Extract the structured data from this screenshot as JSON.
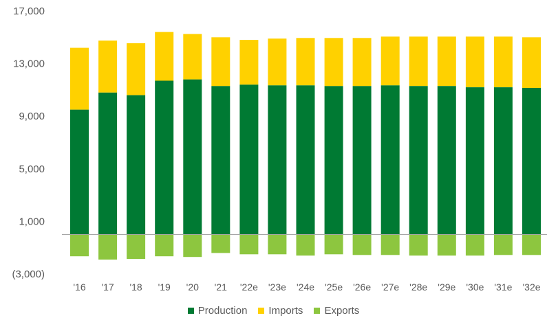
{
  "chart_data": {
    "type": "bar",
    "stacked": true,
    "categories": [
      "'16",
      "'17",
      "'18",
      "'19",
      "'20",
      "'21",
      "'22e",
      "'23e",
      "'24e",
      "'25e",
      "'26e",
      "'27e",
      "'28e",
      "'29e",
      "'30e",
      "'31e",
      "'32e"
    ],
    "series": [
      {
        "name": "Production",
        "color": "#007A33",
        "values": [
          9500,
          10800,
          10600,
          11700,
          11800,
          11300,
          11400,
          11350,
          11350,
          11300,
          11300,
          11350,
          11300,
          11300,
          11200,
          11200,
          11150
        ]
      },
      {
        "name": "Imports",
        "color": "#FFD100",
        "values": [
          4700,
          3950,
          3950,
          3700,
          3450,
          3700,
          3400,
          3550,
          3600,
          3650,
          3650,
          3700,
          3750,
          3750,
          3850,
          3850,
          3850
        ]
      },
      {
        "name": "Exports",
        "color": "#8DC63F",
        "values": [
          -1650,
          -1900,
          -1850,
          -1650,
          -1700,
          -1400,
          -1500,
          -1500,
          -1600,
          -1500,
          -1550,
          -1550,
          -1600,
          -1600,
          -1600,
          -1550,
          -1550
        ]
      }
    ],
    "ylim": [
      -3000,
      17000
    ],
    "yticks": [
      -3000,
      1000,
      5000,
      9000,
      13000,
      17000
    ],
    "ytick_labels": [
      "(3,000)",
      "1,000",
      "5,000",
      "9,000",
      "13,000",
      "17,000"
    ],
    "zero_line": true,
    "grid": false,
    "legend_position": "bottom"
  }
}
